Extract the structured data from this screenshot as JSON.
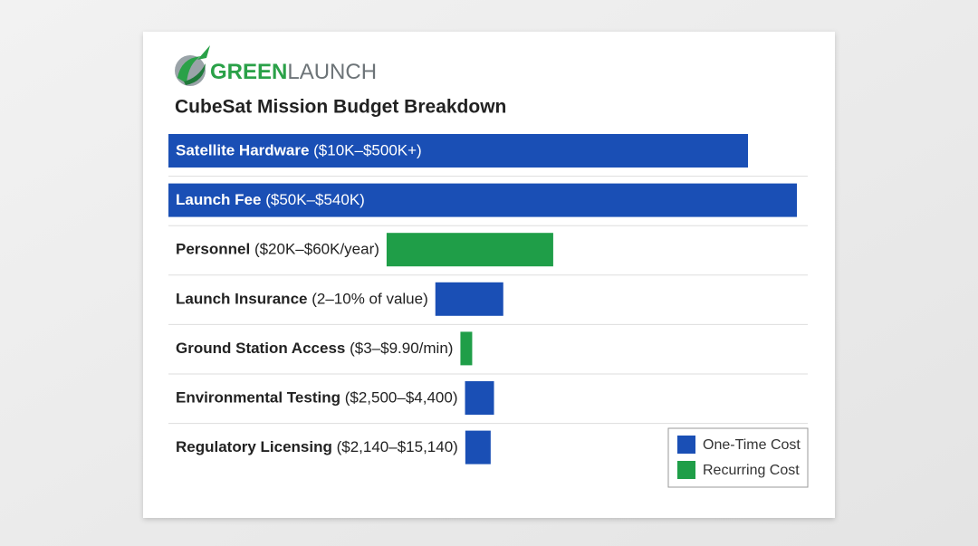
{
  "logo": {
    "green_text": "GREEN",
    "gray_text": "LAUNCH"
  },
  "chart_data": {
    "type": "hbar",
    "title": "CubeSat Mission Budget Breakdown",
    "categories": [
      "Satellite Hardware",
      "Launch Fee",
      "Personnel",
      "Launch Insurance",
      "Ground Station Access",
      "Environmental Testing",
      "Regulatory Licensing"
    ],
    "cost_ranges": [
      "($10K–$500K+)",
      "($50K–$540K)",
      "($20K–$60K/year)",
      "(2–10% of value)",
      "($3–$9.90/min)",
      "($2,500–$4,400)",
      "($2,140–$15,140)"
    ],
    "series": [
      {
        "name": "One-Time Cost",
        "color": "#1a4fb5",
        "values": [
          640,
          694,
          null,
          75,
          null,
          32,
          28
        ]
      },
      {
        "name": "Recurring Cost",
        "color": "#1f9e48",
        "values": [
          null,
          null,
          184,
          null,
          13,
          null,
          null
        ]
      }
    ],
    "legend": "bottom-right"
  }
}
